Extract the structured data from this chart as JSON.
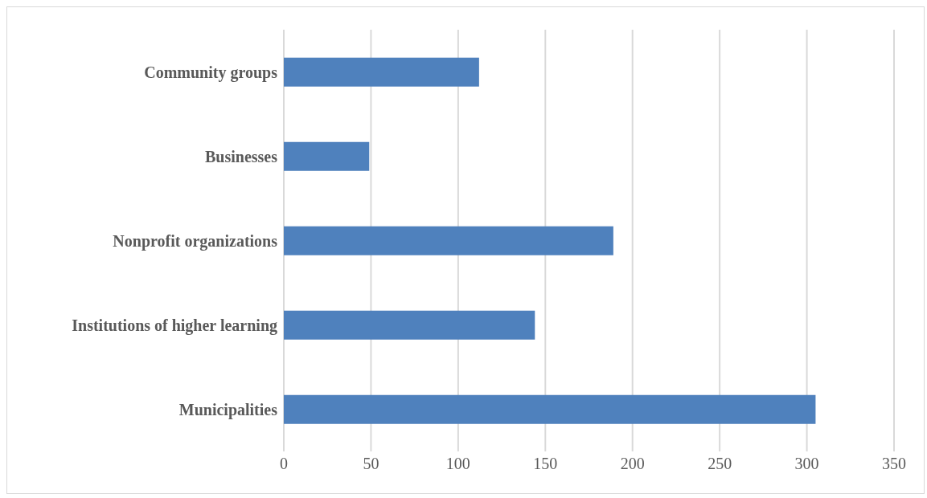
{
  "chart_data": {
    "type": "bar",
    "orientation": "horizontal",
    "categories": [
      "Community groups",
      "Businesses",
      "Nonprofit organizations",
      "Institutions of higher learning",
      "Municipalities"
    ],
    "values": [
      112,
      49,
      189,
      144,
      305
    ],
    "color": "#4f81bd",
    "xlim": [
      0,
      350
    ],
    "xticks": [
      0,
      50,
      100,
      150,
      200,
      250,
      300,
      350
    ],
    "grid": "x",
    "legend": false
  }
}
